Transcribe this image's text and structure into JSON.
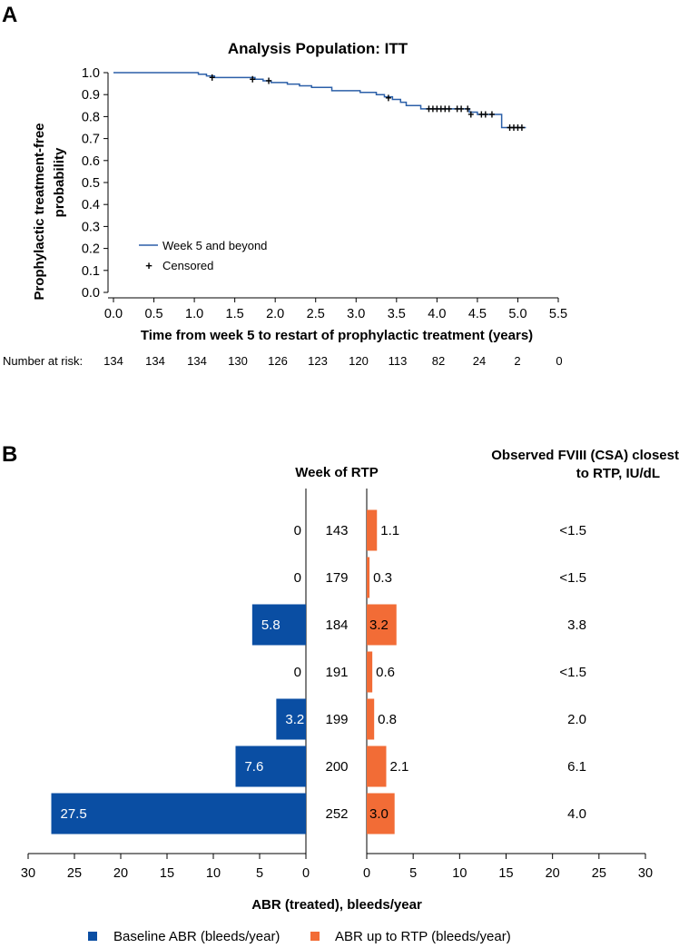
{
  "chart_data": [
    {
      "panel": "A",
      "type": "line",
      "subtype": "kaplan-meier",
      "title": "Analysis Population: ITT",
      "xlabel": "Time from week 5 to restart of prophylactic treatment (years)",
      "ylabel": "Prophylactic treatment-free probability",
      "ylabel_lines": [
        "Prophylactic treatment-free",
        "probability"
      ],
      "xlim": [
        0,
        5.5
      ],
      "ylim": [
        0,
        1.0
      ],
      "xticks": [
        "0.0",
        "0.5",
        "1.0",
        "1.5",
        "2.0",
        "2.5",
        "3.0",
        "3.5",
        "4.0",
        "4.5",
        "5.0",
        "5.5"
      ],
      "yticks": [
        "0.0",
        "0.1",
        "0.2",
        "0.3",
        "0.4",
        "0.5",
        "0.6",
        "0.7",
        "0.8",
        "0.9",
        "1.0"
      ],
      "grid": false,
      "color": "#2b5fa8",
      "legend": {
        "position": "lower-left",
        "entries": [
          {
            "label": "Week 5 and beyond",
            "marker": "line"
          },
          {
            "label": "Censored",
            "marker": "+"
          }
        ]
      },
      "series": [
        {
          "name": "Week 5 and beyond",
          "steps": [
            [
              0.0,
              1.0
            ],
            [
              1.05,
              0.993
            ],
            [
              1.15,
              0.985
            ],
            [
              1.25,
              0.978
            ],
            [
              1.75,
              0.97
            ],
            [
              1.85,
              0.963
            ],
            [
              1.95,
              0.955
            ],
            [
              2.15,
              0.948
            ],
            [
              2.3,
              0.94
            ],
            [
              2.45,
              0.933
            ],
            [
              2.7,
              0.918
            ],
            [
              3.05,
              0.91
            ],
            [
              3.25,
              0.9
            ],
            [
              3.35,
              0.89
            ],
            [
              3.45,
              0.878
            ],
            [
              3.55,
              0.865
            ],
            [
              3.62,
              0.85
            ],
            [
              3.8,
              0.835
            ],
            [
              4.4,
              0.82
            ],
            [
              4.5,
              0.81
            ],
            [
              4.8,
              0.75
            ],
            [
              5.1,
              0.75
            ]
          ],
          "censored": [
            [
              1.22,
              0.978
            ],
            [
              1.72,
              0.97
            ],
            [
              1.92,
              0.963
            ],
            [
              3.4,
              0.885
            ],
            [
              3.9,
              0.835
            ],
            [
              3.95,
              0.835
            ],
            [
              4.0,
              0.835
            ],
            [
              4.05,
              0.835
            ],
            [
              4.1,
              0.835
            ],
            [
              4.15,
              0.835
            ],
            [
              4.25,
              0.835
            ],
            [
              4.3,
              0.835
            ],
            [
              4.38,
              0.835
            ],
            [
              4.42,
              0.81
            ],
            [
              4.55,
              0.81
            ],
            [
              4.6,
              0.81
            ],
            [
              4.68,
              0.81
            ],
            [
              4.9,
              0.75
            ],
            [
              4.95,
              0.75
            ],
            [
              5.0,
              0.75
            ],
            [
              5.05,
              0.75
            ]
          ]
        }
      ],
      "number_at_risk": {
        "label": "Number at risk:",
        "values": [
          134,
          134,
          134,
          130,
          126,
          123,
          120,
          113,
          82,
          24,
          2,
          0
        ]
      }
    },
    {
      "panel": "B",
      "type": "bar",
      "orientation": "horizontal",
      "xlabel": "ABR (treated), bleeds/year",
      "center_header": "Week of RTP",
      "right_header": [
        "Observed FVIII (CSA) closest",
        "to RTP, IU/dL"
      ],
      "left_xlim": [
        30,
        0
      ],
      "right_xlim": [
        0,
        30
      ],
      "left_ticks": [
        "30",
        "25",
        "20",
        "15",
        "10",
        "5",
        "0"
      ],
      "right_ticks": [
        "0",
        "5",
        "10",
        "15",
        "20",
        "25",
        "30"
      ],
      "categories": [
        "143",
        "179",
        "184",
        "191",
        "199",
        "200",
        "252"
      ],
      "series": [
        {
          "name": "Baseline ABR (bleeds/year)",
          "color": "#0a4ea3",
          "values": [
            0,
            0,
            5.8,
            0,
            3.2,
            7.6,
            27.5
          ],
          "labels": [
            "0",
            "0",
            "5.8",
            "0",
            "3.2",
            "7.6",
            "27.5"
          ]
        },
        {
          "name": "ABR up to RTP (bleeds/year)",
          "color": "#f26c36",
          "values": [
            1.1,
            0.3,
            3.2,
            0.6,
            0.8,
            2.1,
            3.0
          ],
          "labels": [
            "1.1",
            "0.3",
            "3.2",
            "0.6",
            "0.8",
            "2.1",
            "3.0"
          ]
        }
      ],
      "fviii": [
        "<1.5",
        "<1.5",
        "3.8",
        "<1.5",
        "2.0",
        "6.1",
        "4.0"
      ],
      "legend": {
        "position": "bottom",
        "entries": [
          "Baseline ABR (bleeds/year)",
          "ABR up to RTP (bleeds/year)"
        ]
      }
    }
  ],
  "panel_labels": [
    "A",
    "B"
  ]
}
